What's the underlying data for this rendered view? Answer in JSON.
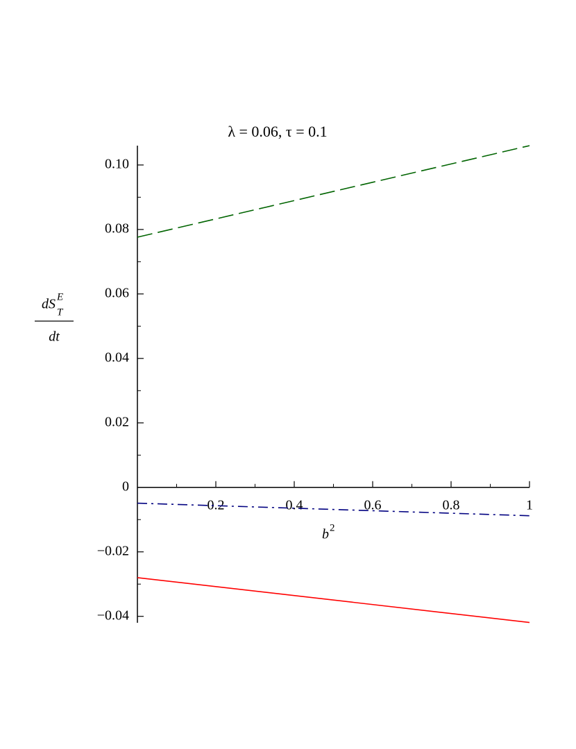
{
  "chart_data": {
    "type": "line",
    "title": "λ = 0.06, τ = 0.1",
    "xlabel": {
      "base": "b",
      "sup": "2"
    },
    "ylabel": {
      "numerator": "dS",
      "sup": "E",
      "sub": "T",
      "denominator": "dt"
    },
    "x": [
      0,
      1
    ],
    "series": [
      {
        "color": "#006400",
        "dash": "dashed",
        "values": [
          0.0776,
          0.106
        ]
      },
      {
        "color": "#000080",
        "dash": "dashdot",
        "values": [
          -0.0049,
          -0.0088
        ]
      },
      {
        "color": "#ff0000",
        "dash": "solid",
        "values": [
          -0.028,
          -0.0419
        ]
      }
    ],
    "xlim": [
      0,
      1
    ],
    "ylim": [
      -0.042,
      0.106
    ],
    "xticks": [
      0.2,
      0.4,
      0.6,
      0.8,
      1
    ],
    "xminorticks": [
      0.1,
      0.3,
      0.5,
      0.7,
      0.9
    ],
    "yticks": [
      {
        "value": -0.04,
        "label": "−0.04"
      },
      {
        "value": -0.02,
        "label": "−0.02"
      },
      0,
      0.02,
      0.04,
      0.06,
      0.08,
      {
        "value": 0.1,
        "label": "0.10"
      }
    ],
    "yminorticks": [
      -0.03,
      -0.01,
      0.01,
      0.03,
      0.05,
      0.07,
      0.09
    ],
    "grid": false
  }
}
